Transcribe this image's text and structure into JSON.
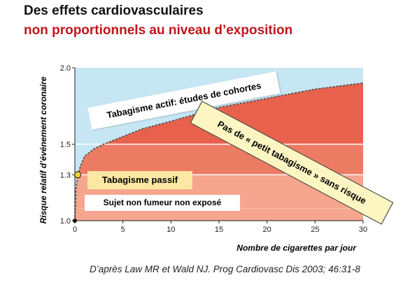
{
  "header": {
    "title_line1": "Des effets cardiovasculaires",
    "title_line2": "non proportionnels au niveau d’exposition"
  },
  "chart_data": {
    "type": "area",
    "xlabel": "Nombre de cigarettes par jour",
    "ylabel": "Risque relatif d’événement coronaire",
    "xlim": [
      0,
      30
    ],
    "ylim": [
      1.0,
      2.0
    ],
    "x_ticks": [
      "0",
      "5",
      "10",
      "15",
      "20",
      "25",
      "30"
    ],
    "y_ticks": [
      "1.0",
      "1.3",
      "1.5",
      "2.0"
    ],
    "y_tick_values": [
      1.0,
      1.3,
      1.5,
      2.0
    ],
    "series": [
      {
        "x": [
          0,
          0.1,
          0.3,
          0.6,
          1,
          2,
          3,
          5,
          7,
          10,
          15,
          20,
          25,
          30
        ],
        "values": [
          1.0,
          1.2,
          1.3,
          1.36,
          1.42,
          1.47,
          1.5,
          1.55,
          1.6,
          1.65,
          1.74,
          1.8,
          1.86,
          1.9
        ]
      }
    ],
    "highlight_point": {
      "x": 0.3,
      "y": 1.3
    },
    "bands": [
      {
        "from": 1.0,
        "to": 1.3,
        "color": "#f6a58f"
      },
      {
        "from": 1.3,
        "to": 1.5,
        "color": "#ec7b64"
      },
      {
        "from": 1.5,
        "to": 2.0,
        "color": "#e8614d"
      }
    ],
    "background_color": "#c7e6f4",
    "annotations": {
      "actif": "Tabagisme actif: études de cohortes",
      "passif": "Tabagisme passif",
      "non_fumeur": "Sujet non fumeur non exposé",
      "petit_tabagisme": "Pas de « petit tabagisme » sans risque"
    }
  },
  "source": "D’après Law MR et Wald NJ. Prog Cardiovasc Dis 2003; 46:31-8"
}
